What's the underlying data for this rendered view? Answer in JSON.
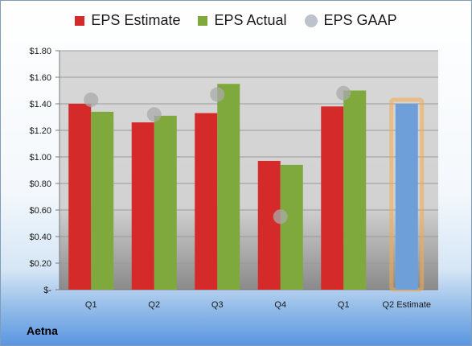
{
  "chart_data": {
    "type": "bar",
    "categories": [
      "Q1",
      "Q2",
      "Q3",
      "Q4",
      "Q1",
      "Q2 Estimate"
    ],
    "series": [
      {
        "name": "EPS Estimate",
        "type": "bar",
        "color": "#d42a2a",
        "values": [
          1.4,
          1.26,
          1.33,
          0.97,
          1.38,
          null
        ]
      },
      {
        "name": "EPS Actual",
        "type": "bar",
        "color": "#7fa83d",
        "values": [
          1.34,
          1.31,
          1.55,
          0.94,
          1.5,
          null
        ]
      },
      {
        "name": "EPS GAAP",
        "type": "scatter",
        "color": "#a9a9a9",
        "values": [
          1.43,
          1.32,
          1.47,
          0.55,
          1.48,
          null
        ]
      },
      {
        "type": "bar",
        "color": "#6f9fd8",
        "highlight": "#f5a94a",
        "values": [
          null,
          null,
          null,
          null,
          null,
          1.4
        ]
      }
    ],
    "ylim": [
      0,
      1.8
    ],
    "yticks": [
      {
        "value": 0,
        "label": "$-"
      },
      {
        "value": 0.2,
        "label": "$0.20"
      },
      {
        "value": 0.4,
        "label": "$0.40"
      },
      {
        "value": 0.6,
        "label": "$0.60"
      },
      {
        "value": 0.8,
        "label": "$0.80"
      },
      {
        "value": 1.0,
        "label": "$1.00"
      },
      {
        "value": 1.2,
        "label": "$1.20"
      },
      {
        "value": 1.4,
        "label": "$1.40"
      },
      {
        "value": 1.6,
        "label": "$1.60"
      },
      {
        "value": 1.8,
        "label": "$1.80"
      }
    ],
    "grid": true,
    "legend": "top"
  },
  "footer": {
    "company": "Aetna"
  }
}
